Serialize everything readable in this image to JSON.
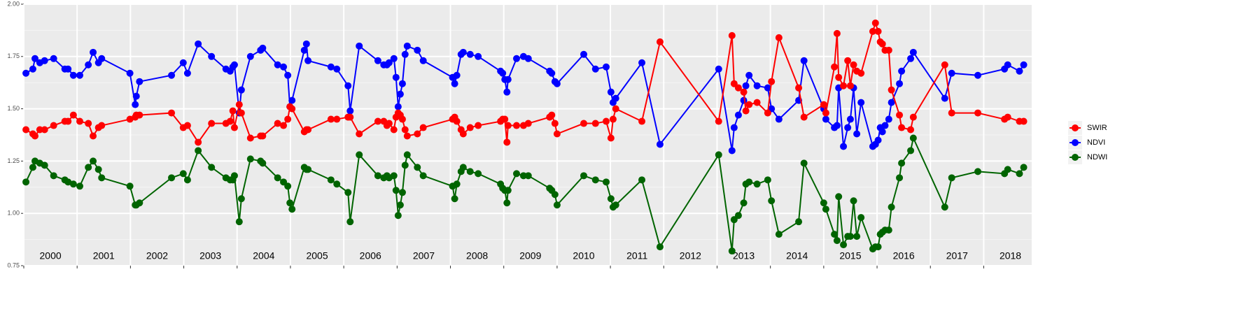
{
  "chart_data": {
    "type": "line",
    "x": [
      2000.04,
      2000.17,
      2000.21,
      2000.3,
      2000.39,
      2000.56,
      2000.77,
      2000.83,
      2000.93,
      2001.05,
      2001.21,
      2001.3,
      2001.4,
      2001.46,
      2001.99,
      2002.09,
      2002.11,
      2002.17,
      2002.77,
      2002.99,
      2003.07,
      2003.27,
      2003.52,
      2003.79,
      2003.87,
      2003.92,
      2003.95,
      2004.04,
      2004.08,
      2004.25,
      2004.44,
      2004.48,
      2004.76,
      2004.87,
      2004.95,
      2004.99,
      2005.03,
      2005.26,
      2005.3,
      2005.33,
      2005.76,
      2005.87,
      2006.08,
      2006.12,
      2006.29,
      2006.64,
      2006.75,
      2006.81,
      2006.85,
      2006.94,
      2006.98,
      2007.02,
      2007.06,
      2007.1,
      2007.15,
      2007.19,
      2007.38,
      2007.49,
      2008.04,
      2008.08,
      2008.12,
      2008.2,
      2008.24,
      2008.37,
      2008.52,
      2008.94,
      2008.98,
      2009.02,
      2009.06,
      2009.08,
      2009.24,
      2009.37,
      2009.46,
      2009.86,
      2009.9,
      2009.96,
      2010.0,
      2010.5,
      2010.72,
      2010.92,
      2011.01,
      2011.05,
      2011.1,
      2011.59,
      2011.93,
      2013.03,
      2013.28,
      2013.32,
      2013.4,
      2013.5,
      2013.54,
      2013.6,
      2013.75,
      2013.95,
      2014.02,
      2014.16,
      2014.53,
      2014.63,
      2015.0,
      2015.04,
      2015.2,
      2015.25,
      2015.28,
      2015.37,
      2015.45,
      2015.5,
      2015.56,
      2015.62,
      2015.7,
      2015.92,
      2015.97,
      2016.02,
      2016.06,
      2016.1,
      2016.15,
      2016.22,
      2016.27,
      2016.42,
      2016.46,
      2016.63,
      2016.68,
      2017.27,
      2017.4,
      2017.89,
      2018.39,
      2018.45,
      2018.67,
      2018.75
    ],
    "series": [
      {
        "name": "SWIR",
        "color": "#ff0000",
        "values": [
          1.4,
          1.38,
          1.37,
          1.4,
          1.4,
          1.42,
          1.44,
          1.44,
          1.47,
          1.44,
          1.43,
          1.37,
          1.41,
          1.42,
          1.45,
          1.46,
          1.47,
          1.47,
          1.48,
          1.41,
          1.42,
          1.34,
          1.43,
          1.43,
          1.44,
          1.49,
          1.41,
          1.52,
          1.48,
          1.36,
          1.37,
          1.37,
          1.43,
          1.42,
          1.45,
          1.51,
          1.5,
          1.39,
          1.4,
          1.4,
          1.45,
          1.45,
          1.46,
          1.46,
          1.38,
          1.44,
          1.44,
          1.42,
          1.43,
          1.4,
          1.46,
          1.48,
          1.47,
          1.45,
          1.4,
          1.37,
          1.38,
          1.41,
          1.45,
          1.46,
          1.44,
          1.4,
          1.38,
          1.41,
          1.42,
          1.44,
          1.45,
          1.45,
          1.34,
          1.42,
          1.42,
          1.42,
          1.43,
          1.46,
          1.47,
          1.43,
          1.38,
          1.43,
          1.43,
          1.44,
          1.36,
          1.45,
          1.5,
          1.44,
          1.82,
          1.44,
          1.85,
          1.62,
          1.6,
          1.58,
          1.49,
          1.52,
          1.53,
          1.48,
          1.63,
          1.84,
          1.6,
          1.46,
          1.52,
          1.48,
          1.7,
          1.86,
          1.65,
          1.61,
          1.73,
          1.61,
          1.71,
          1.68,
          1.67,
          1.87,
          1.91,
          1.87,
          1.82,
          1.81,
          1.78,
          1.78,
          1.59,
          1.47,
          1.41,
          1.4,
          1.46,
          1.71,
          1.48,
          1.48,
          1.45,
          1.46,
          1.44,
          1.44
        ]
      },
      {
        "name": "NDVI",
        "color": "#0000ff",
        "values": [
          1.67,
          1.69,
          1.74,
          1.72,
          1.73,
          1.74,
          1.69,
          1.69,
          1.66,
          1.66,
          1.71,
          1.77,
          1.72,
          1.74,
          1.67,
          1.52,
          1.56,
          1.63,
          1.66,
          1.72,
          1.67,
          1.81,
          1.75,
          1.69,
          1.68,
          1.7,
          1.71,
          1.48,
          1.59,
          1.75,
          1.78,
          1.79,
          1.71,
          1.7,
          1.66,
          1.51,
          1.54,
          1.78,
          1.81,
          1.73,
          1.7,
          1.69,
          1.61,
          1.49,
          1.8,
          1.73,
          1.71,
          1.71,
          1.72,
          1.74,
          1.65,
          1.51,
          1.57,
          1.62,
          1.76,
          1.8,
          1.78,
          1.73,
          1.65,
          1.62,
          1.66,
          1.76,
          1.77,
          1.76,
          1.75,
          1.68,
          1.67,
          1.64,
          1.58,
          1.64,
          1.74,
          1.75,
          1.74,
          1.68,
          1.67,
          1.63,
          1.62,
          1.76,
          1.69,
          1.7,
          1.58,
          1.53,
          1.55,
          1.72,
          1.33,
          1.69,
          1.3,
          1.41,
          1.47,
          1.54,
          1.61,
          1.66,
          1.61,
          1.6,
          1.5,
          1.45,
          1.54,
          1.73,
          1.5,
          1.45,
          1.41,
          1.42,
          1.6,
          1.32,
          1.41,
          1.45,
          1.6,
          1.38,
          1.53,
          1.32,
          1.33,
          1.35,
          1.41,
          1.39,
          1.42,
          1.45,
          1.53,
          1.62,
          1.68,
          1.74,
          1.77,
          1.55,
          1.67,
          1.66,
          1.69,
          1.71,
          1.68,
          1.71
        ]
      },
      {
        "name": "NDWI",
        "color": "#006400",
        "values": [
          1.15,
          1.22,
          1.25,
          1.24,
          1.23,
          1.18,
          1.16,
          1.15,
          1.14,
          1.13,
          1.22,
          1.25,
          1.21,
          1.17,
          1.13,
          1.04,
          1.04,
          1.05,
          1.17,
          1.19,
          1.16,
          1.3,
          1.22,
          1.17,
          1.16,
          1.16,
          1.18,
          0.96,
          1.07,
          1.26,
          1.25,
          1.24,
          1.17,
          1.15,
          1.13,
          1.05,
          1.02,
          1.22,
          1.21,
          1.21,
          1.16,
          1.14,
          1.1,
          0.96,
          1.28,
          1.18,
          1.17,
          1.18,
          1.17,
          1.18,
          1.11,
          0.99,
          1.04,
          1.1,
          1.23,
          1.28,
          1.22,
          1.18,
          1.13,
          1.07,
          1.14,
          1.2,
          1.22,
          1.2,
          1.19,
          1.14,
          1.12,
          1.11,
          1.05,
          1.11,
          1.19,
          1.18,
          1.18,
          1.12,
          1.11,
          1.09,
          1.04,
          1.18,
          1.16,
          1.15,
          1.07,
          1.03,
          1.04,
          1.16,
          0.84,
          1.28,
          0.82,
          0.97,
          0.99,
          1.05,
          1.14,
          1.15,
          1.14,
          1.16,
          1.06,
          0.9,
          0.96,
          1.24,
          1.05,
          1.02,
          0.9,
          0.87,
          1.08,
          0.85,
          0.89,
          0.89,
          1.06,
          0.89,
          0.98,
          0.83,
          0.84,
          0.84,
          0.9,
          0.91,
          0.92,
          0.92,
          1.03,
          1.17,
          1.24,
          1.3,
          1.36,
          1.03,
          1.17,
          1.2,
          1.19,
          1.21,
          1.19,
          1.22
        ]
      }
    ],
    "xlim": [
      2000,
      2018.9
    ],
    "xticks": [
      {
        "value": 2000,
        "label": "2000"
      },
      {
        "value": 2001,
        "label": "2001"
      },
      {
        "value": 2002,
        "label": "2002"
      },
      {
        "value": 2003,
        "label": "2003"
      },
      {
        "value": 2004,
        "label": "2004"
      },
      {
        "value": 2005,
        "label": "2005"
      },
      {
        "value": 2006,
        "label": "2006"
      },
      {
        "value": 2007,
        "label": "2007"
      },
      {
        "value": 2008,
        "label": "2008"
      },
      {
        "value": 2009,
        "label": "2009"
      },
      {
        "value": 2010,
        "label": "2010"
      },
      {
        "value": 2011,
        "label": "2011"
      },
      {
        "value": 2012,
        "label": "2012"
      },
      {
        "value": 2013,
        "label": "2013"
      },
      {
        "value": 2014,
        "label": "2014"
      },
      {
        "value": 2015,
        "label": "2015"
      },
      {
        "value": 2016,
        "label": "2016"
      },
      {
        "value": 2017,
        "label": "2017"
      },
      {
        "value": 2018,
        "label": "2018"
      }
    ],
    "ylim": [
      0.75,
      2.0
    ],
    "yticks": [
      {
        "value": 0.75,
        "label": "0.75"
      },
      {
        "value": 1.0,
        "label": "1.00"
      },
      {
        "value": 1.25,
        "label": "1.25"
      },
      {
        "value": 1.5,
        "label": "1.50"
      },
      {
        "value": 1.75,
        "label": "1.75"
      },
      {
        "value": 2.0,
        "label": "2.00"
      }
    ],
    "grid": true,
    "legend": "right"
  }
}
